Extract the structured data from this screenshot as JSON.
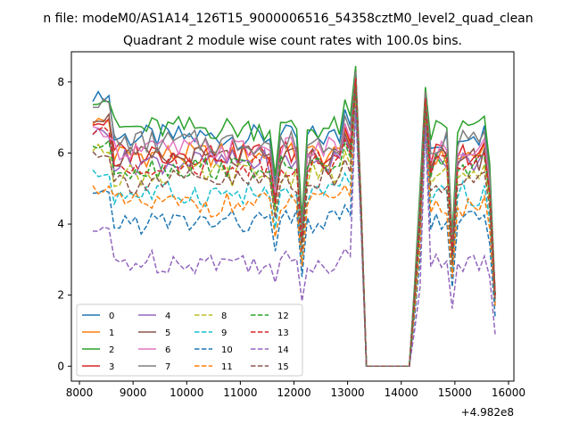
{
  "chart_data": {
    "type": "line",
    "suptitle": "n file: modeM0/AS1A14_126T15_9000006516_54358cztM0_level2_quad_clean",
    "title": "Quadrant 2 module wise count rates with 100.0s bins.",
    "xlabel": "",
    "ylabel": "",
    "offset_text": "+4.982e8",
    "xlim": [
      7850,
      16100
    ],
    "ylim": [
      -0.42,
      8.85
    ],
    "xticks": [
      8000,
      9000,
      10000,
      11000,
      12000,
      13000,
      14000,
      15000,
      16000
    ],
    "xtick_labels": [
      "8000",
      "9000",
      "10000",
      "11000",
      "12000",
      "13000",
      "14000",
      "15000",
      "16000"
    ],
    "yticks": [
      0,
      2,
      4,
      6,
      8
    ],
    "ytick_labels": [
      "0",
      "2",
      "4",
      "6",
      "8"
    ],
    "grid": false,
    "legend_placement": "lower-left",
    "legend_columns": 4,
    "x_start": 8250,
    "x_step": 100,
    "gap": {
      "x_from": 13350,
      "x_to": 14150
    },
    "series": [
      {
        "name": "0",
        "color": "#1f77b4",
        "dash": "solid",
        "base": 6.45,
        "v0": 7.6,
        "peak": 8.3,
        "tail": 2.0
      },
      {
        "name": "1",
        "color": "#ff7f0e",
        "dash": "solid",
        "base": 5.95,
        "v0": 6.9,
        "peak": 8.2,
        "tail": 2.0
      },
      {
        "name": "2",
        "color": "#2ca02c",
        "dash": "solid",
        "base": 6.7,
        "v0": 7.5,
        "peak": 8.45,
        "tail": 2.0
      },
      {
        "name": "3",
        "color": "#d62728",
        "dash": "solid",
        "base": 6.0,
        "v0": 6.85,
        "peak": 8.3,
        "tail": 2.0
      },
      {
        "name": "4",
        "color": "#9467bd",
        "dash": "solid",
        "base": 5.75,
        "v0": 6.6,
        "peak": 8.1,
        "tail": 1.9
      },
      {
        "name": "5",
        "color": "#8c564b",
        "dash": "solid",
        "base": 5.85,
        "v0": 7.0,
        "peak": 8.2,
        "tail": 2.0
      },
      {
        "name": "6",
        "color": "#e377c2",
        "dash": "solid",
        "base": 6.1,
        "v0": 6.6,
        "peak": 8.2,
        "tail": 2.0
      },
      {
        "name": "7",
        "color": "#7f7f7f",
        "dash": "solid",
        "base": 6.3,
        "v0": 7.4,
        "peak": 8.3,
        "tail": 2.0
      },
      {
        "name": "8",
        "color": "#bcbd22",
        "dash": "dashed",
        "base": 5.4,
        "v0": 6.1,
        "peak": 8.0,
        "tail": 1.8
      },
      {
        "name": "9",
        "color": "#17becf",
        "dash": "dashed",
        "base": 4.85,
        "v0": 5.4,
        "peak": 7.7,
        "tail": 1.7
      },
      {
        "name": "10",
        "color": "#1f77b4",
        "dash": "dashed",
        "base": 4.05,
        "v0": 4.8,
        "peak": 7.2,
        "tail": 1.4
      },
      {
        "name": "11",
        "color": "#ff7f0e",
        "dash": "dashed",
        "base": 4.55,
        "v0": 5.0,
        "peak": 7.5,
        "tail": 1.7
      },
      {
        "name": "12",
        "color": "#2ca02c",
        "dash": "dashed",
        "base": 5.6,
        "v0": 6.2,
        "peak": 8.0,
        "tail": 1.9
      },
      {
        "name": "13",
        "color": "#d62728",
        "dash": "dashed",
        "base": 5.7,
        "v0": 6.6,
        "peak": 8.1,
        "tail": 2.0
      },
      {
        "name": "14",
        "color": "#9467bd",
        "dash": "dashed",
        "base": 2.95,
        "v0": 3.8,
        "peak": 7.3,
        "tail": 0.9
      },
      {
        "name": "15",
        "color": "#8c564b",
        "dash": "dashed",
        "base": 5.2,
        "v0": 6.0,
        "peak": 7.8,
        "tail": 1.8
      }
    ]
  }
}
